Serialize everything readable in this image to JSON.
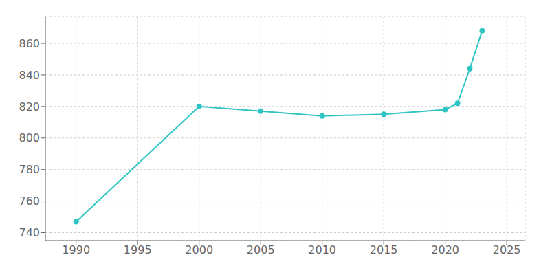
{
  "chart_data": {
    "type": "line",
    "x": [
      1990,
      2000,
      2005,
      2010,
      2015,
      2020,
      2021,
      2022,
      2023
    ],
    "values": [
      747,
      820,
      817,
      814,
      815,
      818,
      822,
      844,
      868
    ],
    "color": "#2EC4C4",
    "marker": "circle",
    "xlim": [
      1987.5,
      2026.5
    ],
    "ylim": [
      735,
      877
    ],
    "xticks": [
      1990,
      1995,
      2000,
      2005,
      2010,
      2015,
      2020,
      2025
    ],
    "yticks": [
      740,
      760,
      780,
      800,
      820,
      840,
      860
    ],
    "grid": true
  }
}
